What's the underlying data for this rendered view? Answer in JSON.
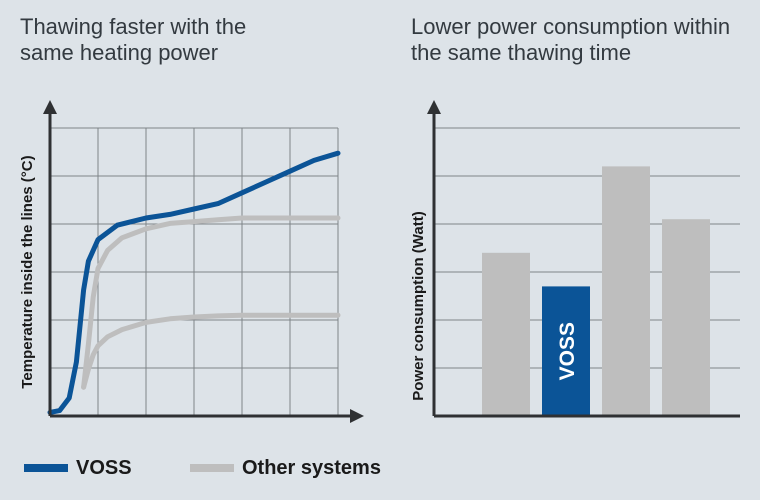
{
  "colors": {
    "background": "#dde3e8",
    "voss": "#0b5497",
    "other": "#bebebe",
    "axis": "#2f3133",
    "grid": "#7f8488"
  },
  "chart_data": [
    {
      "type": "line",
      "title": "Thawing faster with the same heating power",
      "xlabel": "",
      "ylabel": "Temperature inside the lines (°C)",
      "grid": true,
      "legend": "bottom",
      "series": [
        {
          "name": "VOSS",
          "color": "#0b5497",
          "x": [
            0,
            0.2,
            0.4,
            0.55,
            0.7,
            0.8,
            1.0,
            1.4,
            2.0,
            2.5,
            3.0,
            3.5,
            4.0,
            4.5,
            5.0,
            5.5,
            6.0
          ],
          "y": [
            0.1,
            0.15,
            0.5,
            1.5,
            3.5,
            4.3,
            4.9,
            5.3,
            5.5,
            5.6,
            5.75,
            5.9,
            6.2,
            6.5,
            6.8,
            7.1,
            7.3
          ]
        },
        {
          "name": "Other systems",
          "color": "#bebebe",
          "x": [
            0.7,
            0.8,
            0.9,
            1.0,
            1.2,
            1.5,
            2.0,
            2.5,
            3.0,
            3.5,
            4.0,
            5.0,
            6.0
          ],
          "y": [
            0.8,
            2.0,
            3.3,
            4.1,
            4.6,
            4.95,
            5.2,
            5.35,
            5.4,
            5.45,
            5.5,
            5.5,
            5.5
          ]
        },
        {
          "name": "Other systems",
          "color": "#bebebe",
          "x": [
            0.7,
            0.8,
            0.9,
            1.0,
            1.2,
            1.5,
            2.0,
            2.5,
            3.0,
            3.5,
            4.0,
            5.0,
            6.0
          ],
          "y": [
            0.8,
            1.3,
            1.7,
            1.95,
            2.2,
            2.4,
            2.6,
            2.7,
            2.75,
            2.78,
            2.8,
            2.8,
            2.8
          ]
        }
      ],
      "xlim": [
        0,
        6
      ],
      "ylim": [
        0,
        8
      ]
    },
    {
      "type": "bar",
      "title": "Lower power consumption within the same thawing time",
      "xlabel": "",
      "ylabel": "Power consumption (Watt)",
      "grid": true,
      "categories": [
        "",
        "VOSS",
        "",
        ""
      ],
      "bar_labels": [
        "",
        "VOSS",
        "",
        ""
      ],
      "values": [
        3.4,
        2.7,
        5.2,
        4.1
      ],
      "bar_colors": [
        "#bebebe",
        "#0b5497",
        "#bebebe",
        "#bebebe"
      ],
      "ylim": [
        0,
        6
      ]
    }
  ],
  "legend": [
    {
      "label": "VOSS",
      "color": "#0b5497"
    },
    {
      "label": "Other systems",
      "color": "#bebebe"
    }
  ]
}
